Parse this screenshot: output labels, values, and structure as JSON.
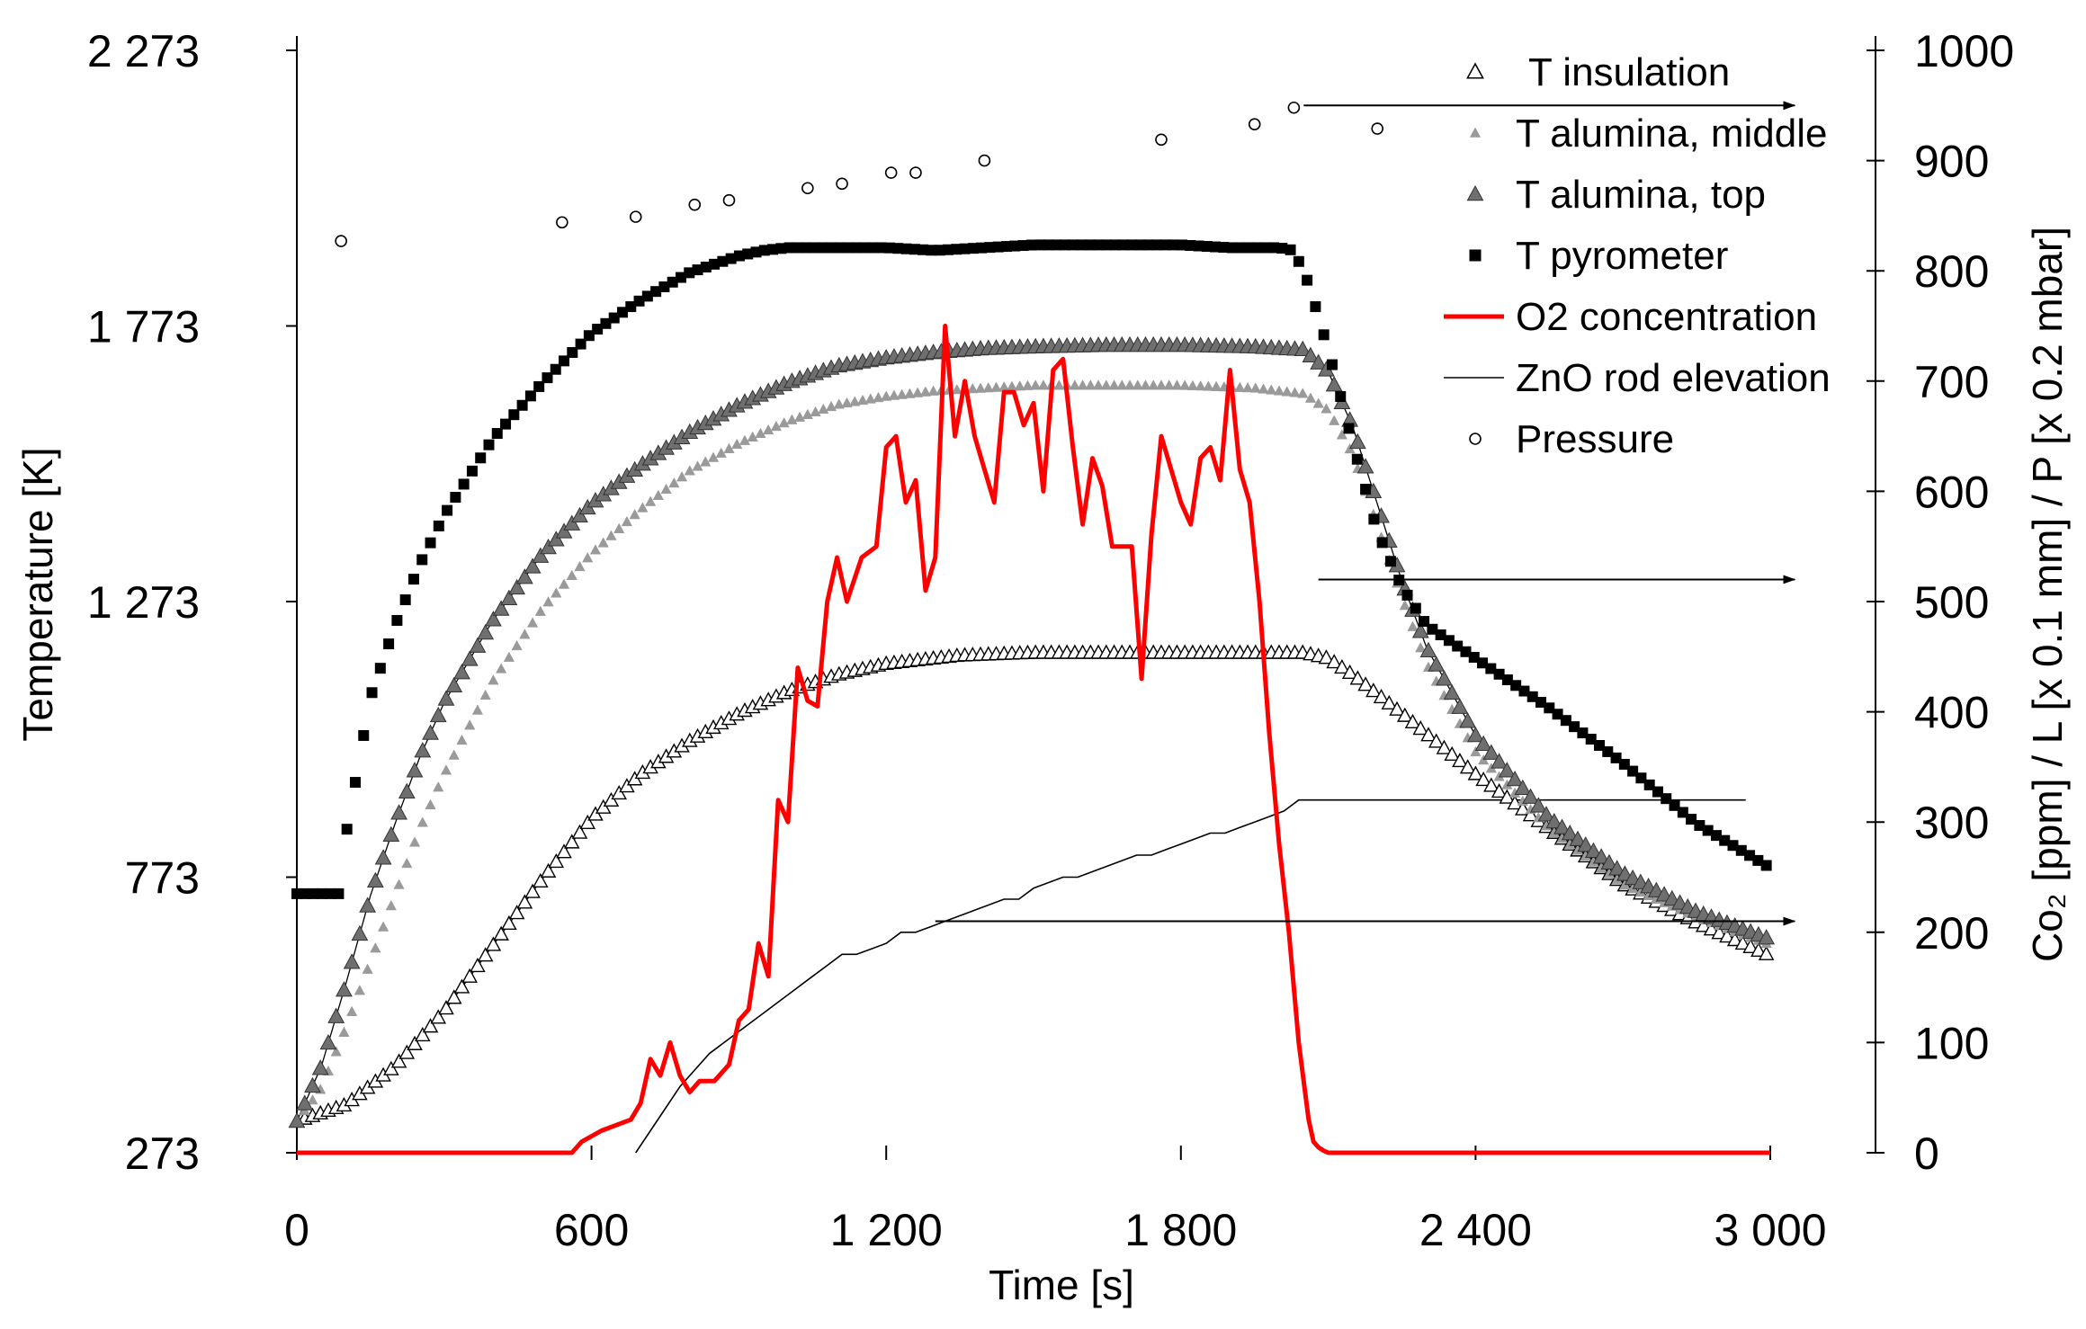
{
  "chart_data": {
    "type": "scatter",
    "xlabel": "Time [s]",
    "ylabel_left": "Temperature [K]",
    "ylabel_right": "Co₂ [ppm] / L [x 0.1 mm] / P [x 0.2 mbar]",
    "xlim": [
      0,
      3000
    ],
    "ylim_left": [
      273,
      2273
    ],
    "ylim_right": [
      0,
      1000
    ],
    "x_ticks": [
      0,
      600,
      1200,
      1800,
      2400,
      3000
    ],
    "x_tick_labels": [
      "0",
      "600",
      "1 200",
      "1 800",
      "2 400",
      "3 000"
    ],
    "y_left_ticks": [
      273,
      773,
      1273,
      1773,
      2273
    ],
    "y_left_tick_labels": [
      "273",
      "773",
      "1 273",
      "1 773",
      "2 273"
    ],
    "y_right_ticks": [
      0,
      100,
      200,
      300,
      400,
      500,
      600,
      700,
      800,
      900,
      1000
    ],
    "y_right_tick_labels": [
      "0",
      "100",
      "200",
      "300",
      "400",
      "500",
      "600",
      "700",
      "800",
      "900",
      "1000"
    ],
    "legend": [
      {
        "label": "T insulation",
        "marker": "triangle-open"
      },
      {
        "label": "T alumina, middle",
        "marker": "triangle-small-gray"
      },
      {
        "label": "T alumina, top",
        "marker": "triangle-gray"
      },
      {
        "label": "T pyrometer",
        "marker": "square"
      },
      {
        "label": "O2 concentration",
        "marker": "line-red"
      },
      {
        "label": "ZnO rod elevation",
        "marker": "line-thin"
      },
      {
        "label": "Pressure",
        "marker": "circle-open"
      }
    ],
    "colors": {
      "o2": "#ff0000",
      "alumina_top": "#6f6f6f",
      "alumina_middle": "#9a9a9a",
      "pyrometer": "#000000"
    },
    "series": [
      {
        "name": "T insulation",
        "axis": "left",
        "x": [
          0,
          100,
          200,
          300,
          400,
          500,
          600,
          700,
          800,
          900,
          1000,
          1100,
          1200,
          1350,
          1500,
          1650,
          1800,
          1950,
          2050,
          2100,
          2150,
          2250,
          2400,
          2550,
          2700,
          2850,
          3000
        ],
        "y": [
          330,
          360,
          430,
          530,
          650,
          770,
          880,
          960,
          1020,
          1070,
          1110,
          1140,
          1160,
          1175,
          1180,
          1180,
          1180,
          1180,
          1180,
          1170,
          1140,
          1070,
          960,
          860,
          760,
          690,
          630
        ]
      },
      {
        "name": "T alumina, middle",
        "axis": "left",
        "x": [
          0,
          50,
          100,
          150,
          200,
          250,
          300,
          400,
          500,
          600,
          700,
          800,
          900,
          1000,
          1100,
          1200,
          1300,
          1400,
          1500,
          1650,
          1800,
          1950,
          2050,
          2100,
          2150,
          2200,
          2250,
          2300,
          2400,
          2550,
          2700,
          2850,
          3000
        ],
        "y": [
          330,
          390,
          500,
          620,
          740,
          860,
          960,
          1130,
          1260,
          1360,
          1440,
          1510,
          1560,
          1600,
          1630,
          1645,
          1655,
          1660,
          1665,
          1665,
          1665,
          1660,
          1650,
          1620,
          1540,
          1410,
          1280,
          1160,
          1000,
          860,
          760,
          700,
          650
        ]
      },
      {
        "name": "T alumina, top",
        "axis": "left",
        "x": [
          0,
          50,
          100,
          150,
          200,
          250,
          300,
          400,
          500,
          600,
          700,
          800,
          900,
          1000,
          1100,
          1200,
          1300,
          1400,
          1500,
          1650,
          1800,
          1950,
          2050,
          2100,
          2150,
          2200,
          2250,
          2300,
          2400,
          2550,
          2700,
          2850,
          3000
        ],
        "y": [
          330,
          430,
          580,
          740,
          870,
          990,
          1090,
          1240,
          1360,
          1450,
          1520,
          1580,
          1630,
          1670,
          1700,
          1715,
          1725,
          1732,
          1735,
          1738,
          1738,
          1735,
          1730,
          1690,
          1590,
          1450,
          1310,
          1190,
          1030,
          880,
          780,
          710,
          660
        ]
      },
      {
        "name": "T pyrometer",
        "axis": "left",
        "x": [
          0,
          30,
          60,
          90,
          100,
          120,
          150,
          200,
          250,
          300,
          400,
          500,
          600,
          700,
          800,
          900,
          950,
          1000,
          1100,
          1200,
          1300,
          1400,
          1500,
          1600,
          1700,
          1800,
          1900,
          2000,
          2030,
          2060,
          2100,
          2150,
          2200,
          2250,
          2300,
          2400,
          2550,
          2700,
          2850,
          3000
        ],
        "y": [
          743,
          743,
          743,
          743,
          850,
          950,
          1100,
          1230,
          1340,
          1430,
          1570,
          1670,
          1760,
          1820,
          1870,
          1900,
          1910,
          1915,
          1915,
          1915,
          1910,
          1915,
          1920,
          1920,
          1920,
          1920,
          1915,
          1915,
          1910,
          1850,
          1730,
          1560,
          1400,
          1300,
          1230,
          1170,
          1080,
          980,
          870,
          790
        ]
      },
      {
        "name": "O2 concentration",
        "axis": "right",
        "x": [
          0,
          500,
          560,
          580,
          620,
          650,
          680,
          700,
          720,
          740,
          760,
          780,
          800,
          820,
          850,
          880,
          900,
          920,
          940,
          960,
          980,
          1000,
          1020,
          1040,
          1060,
          1080,
          1100,
          1120,
          1150,
          1180,
          1200,
          1220,
          1240,
          1260,
          1280,
          1300,
          1320,
          1340,
          1360,
          1380,
          1400,
          1420,
          1440,
          1460,
          1480,
          1500,
          1520,
          1540,
          1560,
          1580,
          1600,
          1620,
          1640,
          1660,
          1680,
          1700,
          1720,
          1740,
          1760,
          1780,
          1800,
          1820,
          1840,
          1860,
          1880,
          1900,
          1920,
          1940,
          1960,
          1980,
          2000,
          2020,
          2040,
          2060,
          2070,
          2080,
          2090,
          2100,
          2120,
          2140,
          2160,
          2200,
          2300,
          3000
        ],
        "y": [
          0,
          0,
          0,
          10,
          20,
          25,
          30,
          45,
          85,
          70,
          100,
          70,
          55,
          65,
          65,
          80,
          120,
          130,
          190,
          160,
          320,
          300,
          440,
          410,
          405,
          500,
          540,
          500,
          540,
          550,
          640,
          650,
          590,
          610,
          510,
          540,
          750,
          650,
          700,
          650,
          620,
          590,
          690,
          690,
          660,
          680,
          600,
          710,
          720,
          640,
          570,
          630,
          605,
          550,
          550,
          550,
          430,
          560,
          650,
          620,
          590,
          570,
          630,
          640,
          610,
          710,
          620,
          590,
          500,
          380,
          280,
          200,
          100,
          30,
          10,
          5,
          2,
          0,
          0,
          0,
          0,
          0,
          0,
          0
        ]
      },
      {
        "name": "ZnO rod elevation",
        "axis": "right",
        "x": [
          690,
          720,
          750,
          780,
          810,
          840,
          870,
          900,
          930,
          960,
          990,
          1020,
          1050,
          1080,
          1110,
          1140,
          1170,
          1200,
          1230,
          1260,
          1290,
          1320,
          1350,
          1380,
          1410,
          1440,
          1470,
          1500,
          1530,
          1560,
          1590,
          1620,
          1650,
          1680,
          1710,
          1740,
          1770,
          1800,
          1830,
          1860,
          1890,
          1920,
          1950,
          1980,
          2010,
          2040,
          2100,
          2400,
          2950
        ],
        "y": [
          0,
          20,
          40,
          60,
          75,
          90,
          100,
          110,
          120,
          130,
          140,
          150,
          160,
          170,
          180,
          180,
          185,
          190,
          200,
          200,
          205,
          210,
          215,
          220,
          225,
          230,
          230,
          240,
          245,
          250,
          250,
          255,
          260,
          265,
          270,
          270,
          275,
          280,
          285,
          290,
          290,
          295,
          300,
          305,
          310,
          320,
          320,
          320,
          320
        ]
      },
      {
        "name": "Pressure",
        "axis": "right",
        "x": [
          90,
          540,
          690,
          810,
          880,
          1040,
          1110,
          1210,
          1260,
          1400,
          1760,
          1950,
          2030,
          2200
        ],
        "y": [
          827,
          844,
          849,
          860,
          864,
          875,
          879,
          889,
          889,
          900,
          919,
          933,
          948,
          929
        ]
      }
    ],
    "annotations": [
      {
        "type": "arrow",
        "from_x": 2050,
        "from_y_right": 950,
        "to_x": 3050,
        "to_y_right": 950
      },
      {
        "type": "arrow",
        "from_x": 2080,
        "from_y_right": 520,
        "to_x": 3050,
        "to_y_right": 520
      },
      {
        "type": "arrow",
        "from_x": 1300,
        "from_y_right": 210,
        "to_x": 3050,
        "to_y_right": 210
      }
    ]
  }
}
